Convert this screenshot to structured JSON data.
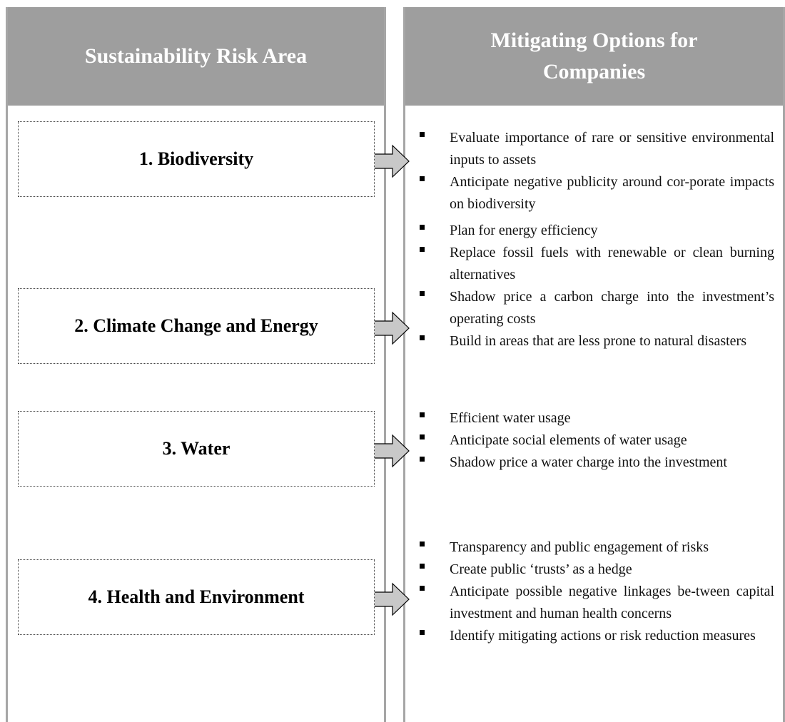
{
  "header": {
    "left": "Sustainability Risk Area",
    "right": "Mitigating Options for Companies"
  },
  "rows": [
    {
      "risk": "1. Biodiversity",
      "options": [
        "Evaluate importance of rare or sensitive environmental inputs to assets",
        "Anticipate negative publicity around cor-porate impacts on biodiversity"
      ]
    },
    {
      "risk": "2. Climate Change and Energy",
      "options": [
        "Plan for energy efficiency",
        "Replace fossil fuels with renewable or clean burning alternatives",
        "Shadow price a carbon charge into the investment’s operating costs",
        "Build in areas that are less prone to natural disasters"
      ]
    },
    {
      "risk": "3. Water",
      "options": [
        "Efficient water usage",
        "Anticipate social elements of water usage",
        "Shadow price a water charge into the investment"
      ]
    },
    {
      "risk": "4. Health and Environment",
      "options": [
        "Transparency and public engagement of risks",
        "Create public ‘trusts’ as a hedge",
        "Anticipate possible negative linkages be-tween capital investment and human health concerns",
        "Identify mitigating actions or risk reduction measures"
      ]
    }
  ]
}
